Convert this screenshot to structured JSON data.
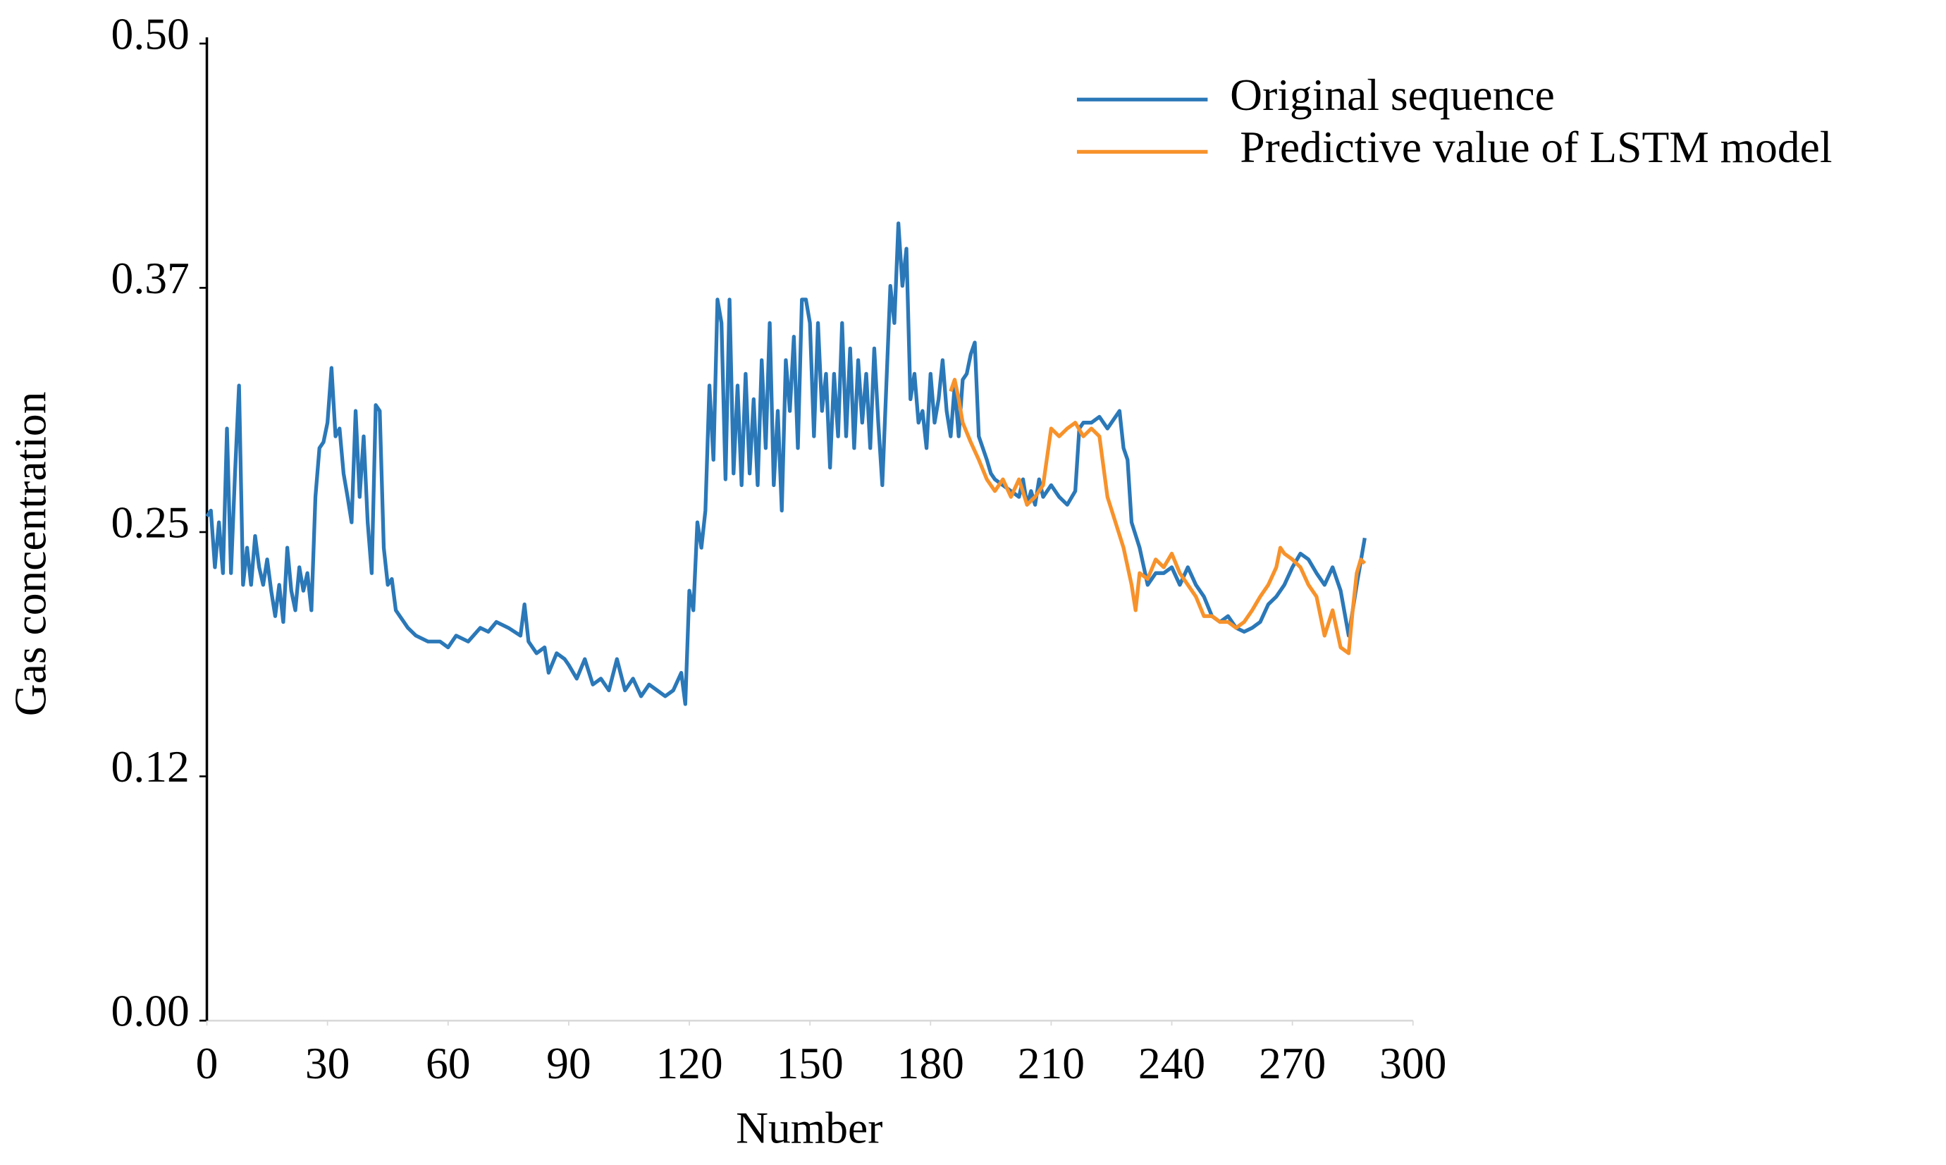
{
  "chart_data": {
    "type": "line",
    "xlabel": "Number",
    "ylabel": "Gas concentration",
    "xlim": [
      0,
      300
    ],
    "xticks": [
      0,
      30,
      60,
      90,
      120,
      150,
      180,
      210,
      240,
      270,
      300
    ],
    "ylim": [
      0,
      0.5
    ],
    "yticks": [
      {
        "value": 0,
        "label": "0.00"
      },
      {
        "value": 0.125,
        "label": "0.12"
      },
      {
        "value": 0.25,
        "label": "0.25"
      },
      {
        "value": 0.375,
        "label": "0.37"
      },
      {
        "value": 0.5,
        "label": "0.50"
      }
    ],
    "legend": "upper right",
    "series": [
      {
        "name": "Original sequence",
        "color": "#2b78b8",
        "x": [
          0,
          1,
          2,
          3,
          4,
          5,
          6,
          7,
          8,
          9,
          10,
          11,
          12,
          13,
          14,
          15,
          16,
          17,
          18,
          19,
          20,
          21,
          22,
          23,
          24,
          25,
          26,
          27,
          28,
          29,
          30,
          31,
          32,
          33,
          34,
          35,
          36,
          37,
          38,
          39,
          40,
          41,
          42,
          43,
          44,
          45,
          46,
          47,
          48,
          49,
          50,
          52,
          55,
          58,
          60,
          62,
          65,
          68,
          70,
          72,
          75,
          78,
          79,
          80,
          82,
          84,
          85,
          87,
          89,
          90,
          92,
          94,
          96,
          98,
          100,
          102,
          104,
          106,
          108,
          110,
          112,
          114,
          116,
          118,
          119,
          120,
          121,
          122,
          123,
          124,
          125,
          126,
          127,
          128,
          129,
          130,
          131,
          132,
          133,
          134,
          135,
          136,
          137,
          138,
          139,
          140,
          141,
          142,
          143,
          144,
          145,
          146,
          147,
          148,
          149,
          150,
          151,
          152,
          153,
          154,
          155,
          156,
          157,
          158,
          159,
          160,
          161,
          162,
          163,
          164,
          165,
          166,
          167,
          168,
          169,
          170,
          171,
          172,
          173,
          174,
          175,
          176,
          177,
          178,
          179,
          180,
          181,
          182,
          183,
          184,
          185,
          186,
          187,
          188,
          189,
          190,
          191,
          192,
          193,
          194,
          195,
          196,
          198,
          200,
          202,
          203,
          204,
          205,
          206,
          207,
          208,
          210,
          212,
          214,
          216,
          217,
          218,
          220,
          222,
          224,
          226,
          227,
          228,
          229,
          230,
          232,
          234,
          236,
          238,
          240,
          242,
          244,
          246,
          248,
          250,
          252,
          254,
          256,
          258,
          260,
          262,
          264,
          266,
          268,
          270,
          272,
          274,
          276,
          278,
          280,
          282,
          284,
          286,
          288
        ],
        "values": [
          0.258,
          0.261,
          0.232,
          0.255,
          0.229,
          0.303,
          0.229,
          0.28,
          0.325,
          0.223,
          0.242,
          0.223,
          0.248,
          0.232,
          0.223,
          0.236,
          0.22,
          0.207,
          0.223,
          0.204,
          0.242,
          0.22,
          0.21,
          0.232,
          0.22,
          0.229,
          0.21,
          0.268,
          0.293,
          0.296,
          0.306,
          0.334,
          0.299,
          0.303,
          0.28,
          0.268,
          0.255,
          0.312,
          0.268,
          0.299,
          0.255,
          0.229,
          0.315,
          0.312,
          0.242,
          0.223,
          0.226,
          0.21,
          0.207,
          0.204,
          0.201,
          0.197,
          0.194,
          0.194,
          0.191,
          0.197,
          0.194,
          0.201,
          0.199,
          0.204,
          0.201,
          0.197,
          0.213,
          0.194,
          0.188,
          0.191,
          0.178,
          0.188,
          0.185,
          0.182,
          0.175,
          0.185,
          0.172,
          0.175,
          0.169,
          0.185,
          0.169,
          0.175,
          0.166,
          0.172,
          0.169,
          0.166,
          0.169,
          0.178,
          0.162,
          0.22,
          0.21,
          0.255,
          0.242,
          0.261,
          0.325,
          0.287,
          0.369,
          0.357,
          0.277,
          0.369,
          0.28,
          0.325,
          0.274,
          0.331,
          0.28,
          0.318,
          0.274,
          0.338,
          0.293,
          0.357,
          0.274,
          0.312,
          0.261,
          0.338,
          0.312,
          0.35,
          0.293,
          0.369,
          0.369,
          0.357,
          0.299,
          0.357,
          0.312,
          0.331,
          0.283,
          0.331,
          0.299,
          0.357,
          0.299,
          0.344,
          0.293,
          0.338,
          0.306,
          0.331,
          0.293,
          0.344,
          0.306,
          0.274,
          0.325,
          0.376,
          0.357,
          0.408,
          0.376,
          0.395,
          0.318,
          0.331,
          0.306,
          0.312,
          0.293,
          0.331,
          0.306,
          0.318,
          0.338,
          0.312,
          0.299,
          0.325,
          0.299,
          0.328,
          0.331,
          0.341,
          0.347,
          0.299,
          0.293,
          0.287,
          0.28,
          0.277,
          0.274,
          0.271,
          0.268,
          0.277,
          0.264,
          0.271,
          0.264,
          0.277,
          0.268,
          0.274,
          0.268,
          0.264,
          0.271,
          0.303,
          0.306,
          0.306,
          0.309,
          0.303,
          0.309,
          0.312,
          0.293,
          0.287,
          0.255,
          0.242,
          0.223,
          0.229,
          0.229,
          0.232,
          0.223,
          0.232,
          0.223,
          0.217,
          0.207,
          0.204,
          0.207,
          0.201,
          0.199,
          0.201,
          0.204,
          0.213,
          0.217,
          0.223,
          0.232,
          0.239,
          0.236,
          0.229,
          0.223,
          0.232,
          0.22,
          0.197,
          0.223,
          0.247
        ]
      },
      {
        "name": "Predictive value of LSTM model",
        "color": "#f7922b",
        "x": [
          185,
          186,
          187,
          188,
          190,
          192,
          194,
          196,
          198,
          200,
          202,
          204,
          206,
          208,
          210,
          212,
          214,
          216,
          218,
          220,
          222,
          224,
          226,
          228,
          230,
          231,
          232,
          234,
          236,
          238,
          240,
          242,
          244,
          246,
          248,
          250,
          252,
          254,
          256,
          258,
          260,
          262,
          264,
          266,
          267,
          268,
          270,
          272,
          274,
          276,
          278,
          280,
          282,
          284,
          285,
          286,
          287,
          288
        ],
        "values": [
          0.322,
          0.328,
          0.318,
          0.306,
          0.296,
          0.287,
          0.277,
          0.271,
          0.277,
          0.268,
          0.277,
          0.264,
          0.268,
          0.274,
          0.303,
          0.299,
          0.303,
          0.306,
          0.299,
          0.303,
          0.299,
          0.268,
          0.255,
          0.242,
          0.223,
          0.21,
          0.229,
          0.226,
          0.236,
          0.232,
          0.239,
          0.229,
          0.223,
          0.217,
          0.207,
          0.207,
          0.204,
          0.204,
          0.201,
          0.204,
          0.21,
          0.217,
          0.223,
          0.232,
          0.242,
          0.239,
          0.236,
          0.232,
          0.223,
          0.217,
          0.197,
          0.21,
          0.191,
          0.188,
          0.21,
          0.229,
          0.236,
          0.234
        ]
      }
    ]
  }
}
